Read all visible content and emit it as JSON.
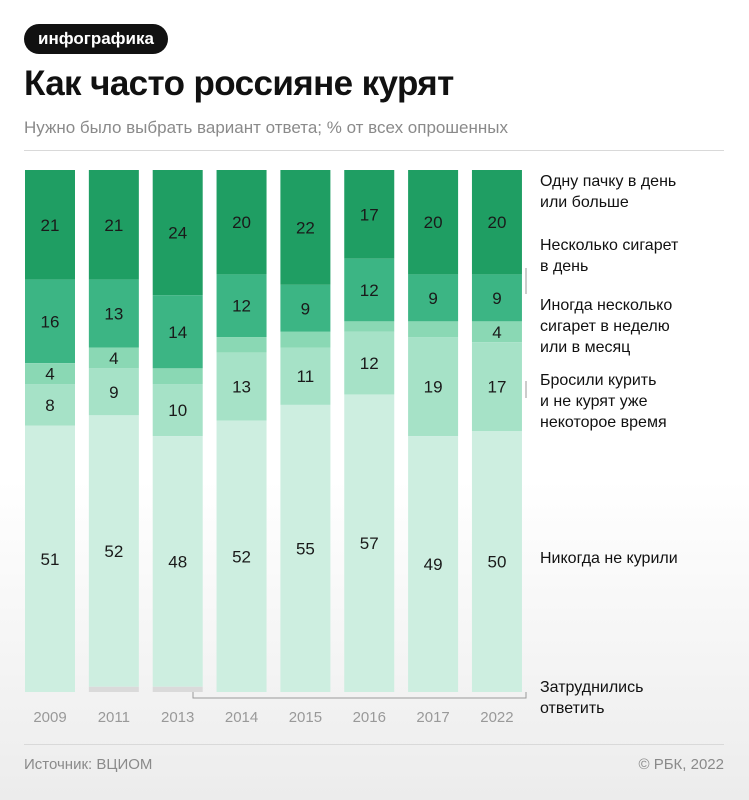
{
  "badge": "инфографика",
  "title": "Как часто россияне курят",
  "subtitle": "Нужно было выбрать вариант ответа; % от всех опрошенных",
  "footer": {
    "source": "Источник: ВЦИОМ",
    "copyright": "© РБК, 2022"
  },
  "chart_data": {
    "type": "bar",
    "stacked": true,
    "orientation": "vertical",
    "categories": [
      "2009",
      "2011",
      "2013",
      "2014",
      "2015",
      "2016",
      "2017",
      "2022"
    ],
    "series": [
      {
        "name": "Одну пачку в день или больше",
        "color": "#1f9e63",
        "values": [
          21,
          21,
          24,
          20,
          22,
          17,
          20,
          20
        ]
      },
      {
        "name": "Несколько сигарет в день",
        "color": "#3cb584",
        "values": [
          16,
          13,
          14,
          12,
          9,
          12,
          9,
          9
        ]
      },
      {
        "name": "Иногда несколько сигарет в неделю или в месяц",
        "color": "#8ad8b4",
        "values": [
          4,
          4,
          3,
          3,
          3,
          2,
          3,
          4
        ]
      },
      {
        "name": "Бросили курить и не курят уже некоторое время",
        "color": "#a6e2c7",
        "values": [
          8,
          9,
          10,
          13,
          11,
          12,
          19,
          17
        ]
      },
      {
        "name": "Никогда не курили",
        "color": "#cdeee0",
        "values": [
          51,
          52,
          48,
          52,
          55,
          57,
          49,
          50
        ]
      },
      {
        "name": "Затруднились ответить",
        "color": "#dadada",
        "values": [
          0,
          1,
          1,
          0,
          0,
          0,
          0,
          0
        ]
      }
    ],
    "data_labels": [
      [
        21,
        21,
        24,
        20,
        22,
        17,
        20,
        20
      ],
      [
        16,
        13,
        14,
        12,
        9,
        12,
        9,
        9
      ],
      [
        4,
        4,
        null,
        null,
        null,
        null,
        null,
        4
      ],
      [
        8,
        9,
        10,
        13,
        11,
        12,
        19,
        17
      ],
      [
        51,
        52,
        48,
        52,
        55,
        57,
        49,
        50
      ],
      [
        null,
        null,
        null,
        null,
        null,
        null,
        null,
        null
      ]
    ],
    "legend_labels": [
      "Одну пачку в день\nили больше",
      "Несколько сигарет\nв день",
      "Иногда несколько\nсигарет в неделю\nили в месяц",
      "Бросили курить\nи не курят уже\nнекоторое время",
      "Никогда не курили",
      "Затруднились\nответить"
    ],
    "legend_placement": "right",
    "ylim": [
      0,
      100
    ],
    "grid": false,
    "colors": {
      "label_text": "#1a1a1a",
      "tick_text": "#999999",
      "connector": "#9a9a9a"
    }
  }
}
